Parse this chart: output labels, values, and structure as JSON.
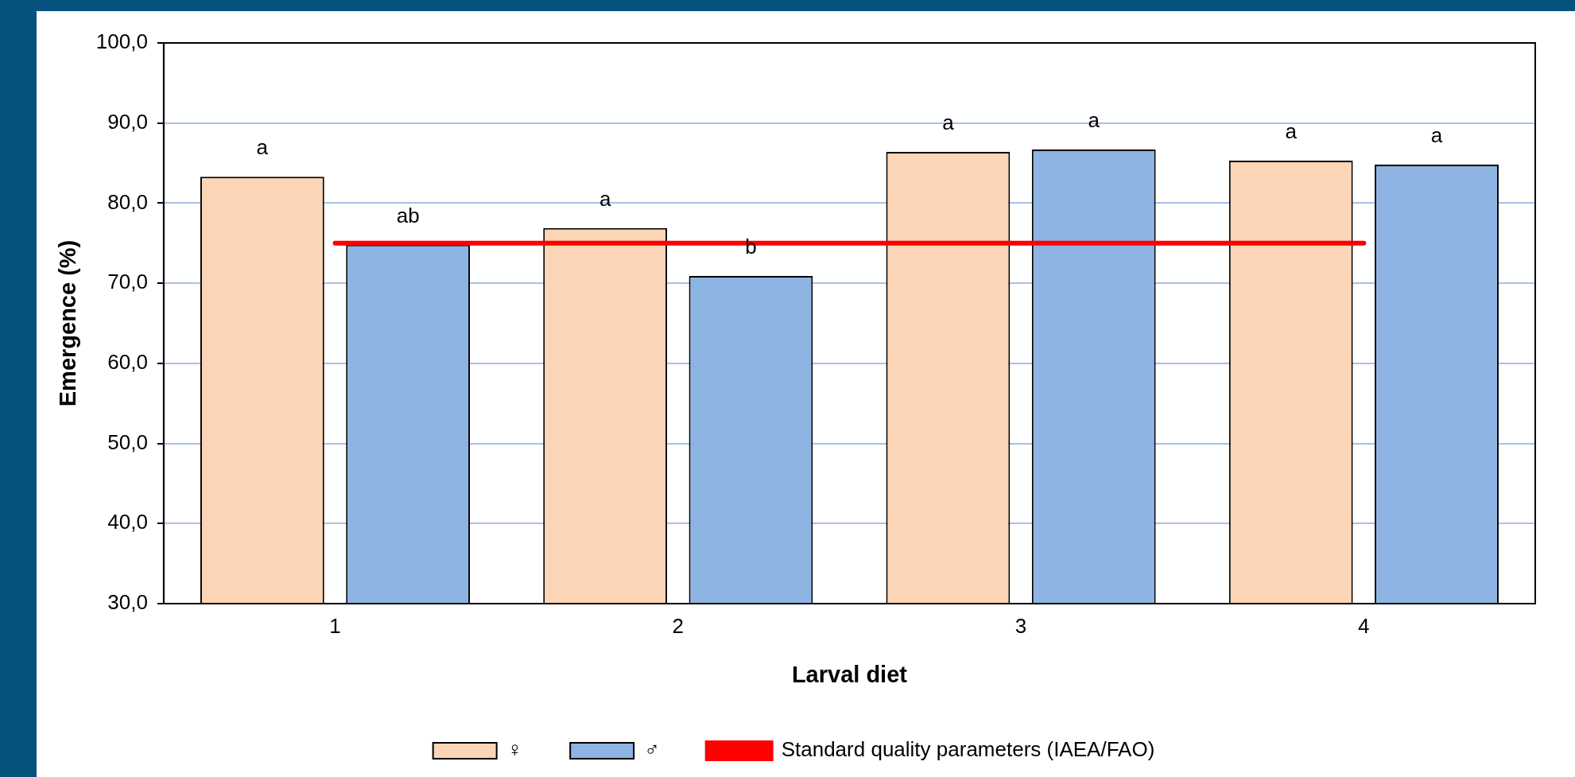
{
  "chart_data": {
    "type": "bar",
    "xlabel": "Larval diet",
    "ylabel": "Emergence (%)",
    "categories": [
      "1",
      "2",
      "3",
      "4"
    ],
    "series": [
      {
        "name": "♀",
        "color": "#fbd5b5",
        "values": [
          83.3,
          76.9,
          86.4,
          85.3
        ]
      },
      {
        "name": "♂",
        "color": "#8eb4e3",
        "values": [
          74.8,
          70.9,
          86.7,
          84.8
        ]
      }
    ],
    "ylim": [
      30,
      100
    ],
    "yticks": [
      {
        "value": 30,
        "label": "30,0"
      },
      {
        "value": 40,
        "label": "40,0"
      },
      {
        "value": 50,
        "label": "50,0"
      },
      {
        "value": 60,
        "label": "60,0"
      },
      {
        "value": 70,
        "label": "70,0"
      },
      {
        "value": 80,
        "label": "80,0"
      },
      {
        "value": 90,
        "label": "90,0"
      },
      {
        "value": 100,
        "label": "100,0"
      }
    ],
    "grid": "y",
    "legend": "bottom",
    "ref_lines": [
      {
        "axis": "y",
        "value": 75,
        "label": "Standard quality parameters (IAEA/FAO)",
        "color": "#ff0000"
      }
    ],
    "annotations": [
      "a",
      "ab",
      "a",
      "b",
      "a",
      "a",
      "a",
      "a"
    ]
  }
}
